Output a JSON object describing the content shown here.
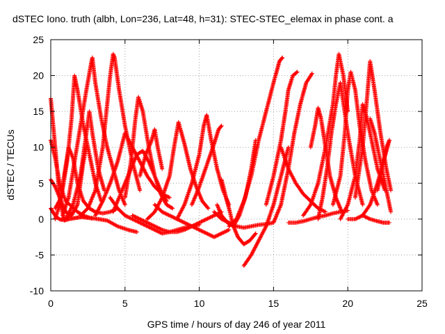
{
  "chart_data": {
    "type": "scatter",
    "title": "dSTEC Iono. truth (albh, Lon=236, Lat=48, h=31): STEC-STEC_elemax in phase cont. a",
    "xlabel": "GPS time / hours of day 246 of year 2011",
    "ylabel": "dSTEC  / TECUs",
    "xlim": [
      0,
      25
    ],
    "ylim": [
      -10,
      25
    ],
    "xticks": [
      0,
      5,
      10,
      15,
      20,
      25
    ],
    "yticks": [
      -10,
      -5,
      0,
      5,
      10,
      15,
      20,
      25
    ],
    "grid": true,
    "marker": "+",
    "color": "#ff0000",
    "series": [
      {
        "x": [
          0.0,
          0.3,
          0.6,
          0.9,
          1.2,
          1.5,
          1.8,
          2.1,
          2.4,
          2.8
        ],
        "y": [
          16.8,
          10.0,
          3.0,
          -0.2,
          0.0,
          0.1,
          0.2,
          0.3,
          0.2,
          0.1
        ]
      },
      {
        "x": [
          0.0,
          0.3,
          0.6,
          1.0,
          1.4,
          1.8,
          2.2,
          2.6,
          3.2,
          3.8,
          4.5,
          5.2,
          5.8
        ],
        "y": [
          11.0,
          8.5,
          5.0,
          2.5,
          1.8,
          1.0,
          0.5,
          0.2,
          0.0,
          -0.2,
          -1.0,
          -1.5,
          -1.8
        ]
      },
      {
        "x": [
          0.0,
          0.2,
          0.4,
          0.7,
          1.0,
          1.3,
          1.5
        ],
        "y": [
          1.5,
          0.8,
          0.2,
          -0.1,
          0.0,
          0.5,
          1.0
        ]
      },
      {
        "x": [
          0.0,
          0.3,
          0.6,
          1.0,
          1.4,
          1.8,
          2.2,
          2.4
        ],
        "y": [
          5.5,
          4.5,
          3.0,
          1.0,
          0.5,
          2.0,
          8.0,
          10.0
        ]
      },
      {
        "x": [
          0.3,
          0.6,
          0.9,
          1.2,
          1.5,
          1.8,
          2.2,
          2.6,
          3.0,
          3.5,
          4.0,
          4.5
        ],
        "y": [
          0.0,
          2.0,
          6.0,
          10.0,
          8.5,
          5.0,
          2.5,
          1.5,
          1.0,
          0.8,
          1.0,
          1.5
        ]
      },
      {
        "x": [
          0.3,
          0.7,
          1.1,
          1.4,
          1.6,
          1.8,
          2.2,
          2.6,
          3.0,
          3.4
        ],
        "y": [
          1.5,
          3.0,
          8.0,
          14.0,
          20.0,
          18.0,
          13.0,
          9.0,
          5.0,
          2.5
        ]
      },
      {
        "x": [
          0.8,
          1.2,
          1.6,
          2.0,
          2.4,
          2.7,
          2.8,
          3.0,
          3.4,
          3.8,
          4.2,
          4.6,
          5.0
        ],
        "y": [
          0.5,
          3.0,
          8.0,
          13.0,
          18.0,
          21.5,
          22.5,
          19.0,
          14.0,
          10.0,
          7.0,
          4.0,
          2.0
        ]
      },
      {
        "x": [
          1.0,
          1.5,
          2.0,
          2.4,
          2.6,
          2.8,
          3.2,
          3.6
        ],
        "y": [
          0.0,
          2.0,
          6.0,
          12.0,
          15.0,
          12.0,
          7.0,
          4.0
        ]
      },
      {
        "x": [
          2.0,
          2.5,
          3.0,
          3.5,
          3.8,
          4.0,
          4.2,
          4.3,
          4.6,
          5.0,
          5.5,
          6.0
        ],
        "y": [
          0.5,
          1.5,
          4.0,
          10.0,
          16.0,
          20.0,
          23.0,
          22.5,
          18.0,
          13.0,
          8.0,
          4.0
        ]
      },
      {
        "x": [
          3.0,
          3.5,
          4.0,
          4.5,
          5.0,
          5.5,
          6.0,
          6.5,
          7.0,
          7.5,
          8.0
        ],
        "y": [
          0.5,
          2.5,
          5.0,
          8.0,
          12.0,
          10.0,
          8.0,
          6.0,
          4.5,
          3.5,
          3.0
        ]
      },
      {
        "x": [
          4.2,
          4.6,
          5.0,
          5.4,
          5.8,
          6.2,
          6.6,
          7.0,
          7.4,
          7.8
        ],
        "y": [
          1.0,
          3.0,
          5.0,
          7.0,
          9.0,
          9.5,
          8.0,
          6.0,
          4.0,
          2.5
        ]
      },
      {
        "x": [
          4.0,
          4.5,
          5.0,
          5.5,
          6.0,
          6.5,
          7.0,
          7.5,
          8.0,
          8.5,
          9.0,
          9.5,
          10.0
        ],
        "y": [
          3.0,
          1.5,
          0.5,
          0.0,
          -0.5,
          -1.0,
          -1.5,
          -2.0,
          -1.8,
          -1.5,
          -1.2,
          -1.0,
          -0.8
        ]
      },
      {
        "x": [
          5.0,
          5.4,
          5.7,
          5.9,
          6.2,
          6.6,
          7.0,
          7.4,
          7.8,
          8.2
        ],
        "y": [
          3.0,
          8.0,
          14.0,
          17.0,
          15.0,
          10.0,
          6.0,
          3.5,
          2.0,
          1.5
        ]
      },
      {
        "x": [
          5.5,
          6.0,
          6.5,
          7.0,
          7.5,
          8.0,
          8.5,
          9.0,
          9.5,
          10.0,
          10.5,
          11.0,
          11.5
        ],
        "y": [
          0.5,
          0.0,
          -0.5,
          -1.0,
          -1.5,
          -1.8,
          -1.8,
          -1.5,
          -1.0,
          -0.5,
          0.0,
          0.5,
          1.0
        ]
      },
      {
        "x": [
          6.0,
          6.4,
          6.8,
          7.0,
          7.2,
          7.5
        ],
        "y": [
          6.0,
          9.0,
          11.0,
          12.5,
          10.0,
          7.0
        ]
      },
      {
        "x": [
          6.5,
          7.0,
          7.5,
          8.0,
          8.3,
          8.6,
          9.0,
          9.4,
          9.8,
          10.2,
          10.6
        ],
        "y": [
          0.0,
          1.0,
          3.0,
          6.0,
          10.0,
          13.5,
          10.5,
          7.0,
          4.5,
          2.5,
          1.5
        ]
      },
      {
        "x": [
          7.0,
          7.5,
          8.0,
          8.5,
          9.0,
          9.5,
          10.0,
          10.5,
          11.0,
          11.5,
          12.0
        ],
        "y": [
          2.0,
          1.0,
          0.5,
          0.0,
          -0.5,
          -1.0,
          -1.5,
          -2.0,
          -2.5,
          -2.0,
          -1.5
        ]
      },
      {
        "x": [
          8.5,
          9.0,
          9.5,
          10.0,
          10.3,
          10.5,
          10.8,
          11.2,
          11.6,
          12.0
        ],
        "y": [
          0.0,
          2.0,
          5.0,
          9.0,
          13.0,
          14.5,
          11.0,
          7.0,
          4.0,
          2.0
        ]
      },
      {
        "x": [
          9.5,
          10.0,
          10.5,
          11.0,
          11.3,
          11.5
        ],
        "y": [
          2.0,
          4.5,
          7.5,
          10.5,
          12.5,
          13.0
        ]
      },
      {
        "x": [
          11.0,
          11.5,
          12.0,
          12.5,
          13.0,
          13.5,
          14.0,
          14.5,
          15.0
        ],
        "y": [
          1.0,
          0.0,
          -0.5,
          -1.0,
          -1.2,
          -1.0,
          -0.8,
          -0.7,
          -0.5
        ]
      },
      {
        "x": [
          11.5,
          11.8,
          12.0,
          12.3,
          12.6,
          13.0,
          13.4,
          13.8
        ],
        "y": [
          5.5,
          3.0,
          1.5,
          -1.0,
          -2.5,
          -3.5,
          -3.0,
          -2.0
        ]
      },
      {
        "x": [
          11.2,
          11.5,
          11.9,
          12.3,
          12.7,
          13.1,
          13.5,
          13.8
        ],
        "y": [
          2.0,
          0.5,
          -0.5,
          -1.0,
          0.5,
          3.0,
          7.0,
          11.0
        ]
      },
      {
        "x": [
          12.0,
          12.5,
          13.0,
          13.5,
          14.0,
          14.5,
          15.0,
          15.4,
          15.6
        ],
        "y": [
          -1.0,
          0.0,
          2.5,
          6.0,
          11.0,
          15.0,
          19.0,
          22.0,
          22.5
        ]
      },
      {
        "x": [
          13.0,
          13.5,
          14.0,
          14.5,
          15.0,
          15.5,
          16.0
        ],
        "y": [
          -6.5,
          -5.0,
          -3.0,
          -1.0,
          2.0,
          6.0,
          10.0
        ]
      },
      {
        "x": [
          14.5,
          15.0,
          15.5,
          15.8,
          16.0,
          16.3,
          16.6
        ],
        "y": [
          2.0,
          6.0,
          11.0,
          15.0,
          18.0,
          20.0,
          20.5
        ]
      },
      {
        "x": [
          15.0,
          15.5,
          16.0,
          16.4,
          16.8,
          17.2,
          17.6
        ],
        "y": [
          -0.5,
          2.0,
          7.0,
          12.0,
          16.0,
          19.0,
          20.3
        ]
      },
      {
        "x": [
          15.5,
          16.0,
          16.5,
          17.0,
          17.5,
          18.0,
          18.5
        ],
        "y": [
          10.0,
          7.0,
          5.0,
          3.5,
          2.5,
          1.5,
          1.0
        ]
      },
      {
        "x": [
          16.0,
          16.5,
          17.0,
          17.5,
          18.0,
          18.5,
          19.0,
          19.5,
          20.0
        ],
        "y": [
          -0.5,
          -0.5,
          -0.3,
          0.0,
          0.3,
          0.5,
          0.8,
          1.0,
          1.2
        ]
      },
      {
        "x": [
          17.5,
          17.8,
          18.0,
          18.2,
          18.5,
          18.8,
          19.2,
          19.6
        ],
        "y": [
          10.0,
          13.0,
          15.5,
          14.0,
          10.0,
          6.0,
          3.0,
          1.0
        ]
      },
      {
        "x": [
          17.0,
          17.5,
          18.0,
          18.5,
          19.0,
          19.2,
          19.4,
          19.7,
          20.0
        ],
        "y": [
          0.5,
          2.0,
          5.0,
          10.0,
          16.0,
          20.0,
          23.0,
          20.0,
          15.0
        ]
      },
      {
        "x": [
          18.0,
          18.3,
          18.6,
          18.9,
          19.2,
          19.5,
          20.0,
          20.5,
          21.0
        ],
        "y": [
          0.0,
          3.0,
          7.0,
          12.0,
          16.0,
          19.0,
          12.0,
          6.0,
          2.0
        ]
      },
      {
        "x": [
          19.0,
          19.5,
          19.8,
          20.0,
          20.2,
          20.5,
          20.8,
          21.2,
          21.6,
          22.0
        ],
        "y": [
          2.0,
          6.0,
          12.0,
          18.0,
          20.5,
          18.0,
          13.0,
          8.0,
          4.0,
          2.0
        ]
      },
      {
        "x": [
          19.5,
          20.0,
          20.5,
          20.8,
          21.0,
          21.3,
          21.7,
          22.0,
          22.5
        ],
        "y": [
          0.0,
          2.0,
          6.0,
          11.0,
          16.0,
          14.0,
          10.0,
          7.0,
          4.0
        ]
      },
      {
        "x": [
          20.5,
          21.0,
          21.3,
          21.5,
          21.8,
          22.2,
          22.6,
          22.9
        ],
        "y": [
          3.0,
          10.0,
          17.0,
          22.0,
          18.0,
          12.0,
          7.0,
          4.0
        ]
      },
      {
        "x": [
          20.0,
          20.5,
          21.0,
          21.5,
          22.0,
          22.4,
          22.8
        ],
        "y": [
          0.0,
          0.0,
          0.5,
          2.0,
          5.0,
          8.0,
          11.0
        ]
      },
      {
        "x": [
          21.0,
          21.5,
          22.0,
          22.4,
          22.8
        ],
        "y": [
          0.5,
          0.0,
          -0.3,
          -0.5,
          -0.5
        ]
      },
      {
        "x": [
          21.5,
          21.8,
          22.0,
          22.3,
          22.6,
          22.9
        ],
        "y": [
          14.0,
          12.0,
          10.0,
          7.0,
          4.0,
          1.0
        ]
      },
      {
        "x": [
          22.0,
          22.3,
          22.6,
          22.8
        ],
        "y": [
          4.0,
          7.0,
          10.0,
          11.0
        ]
      }
    ]
  }
}
